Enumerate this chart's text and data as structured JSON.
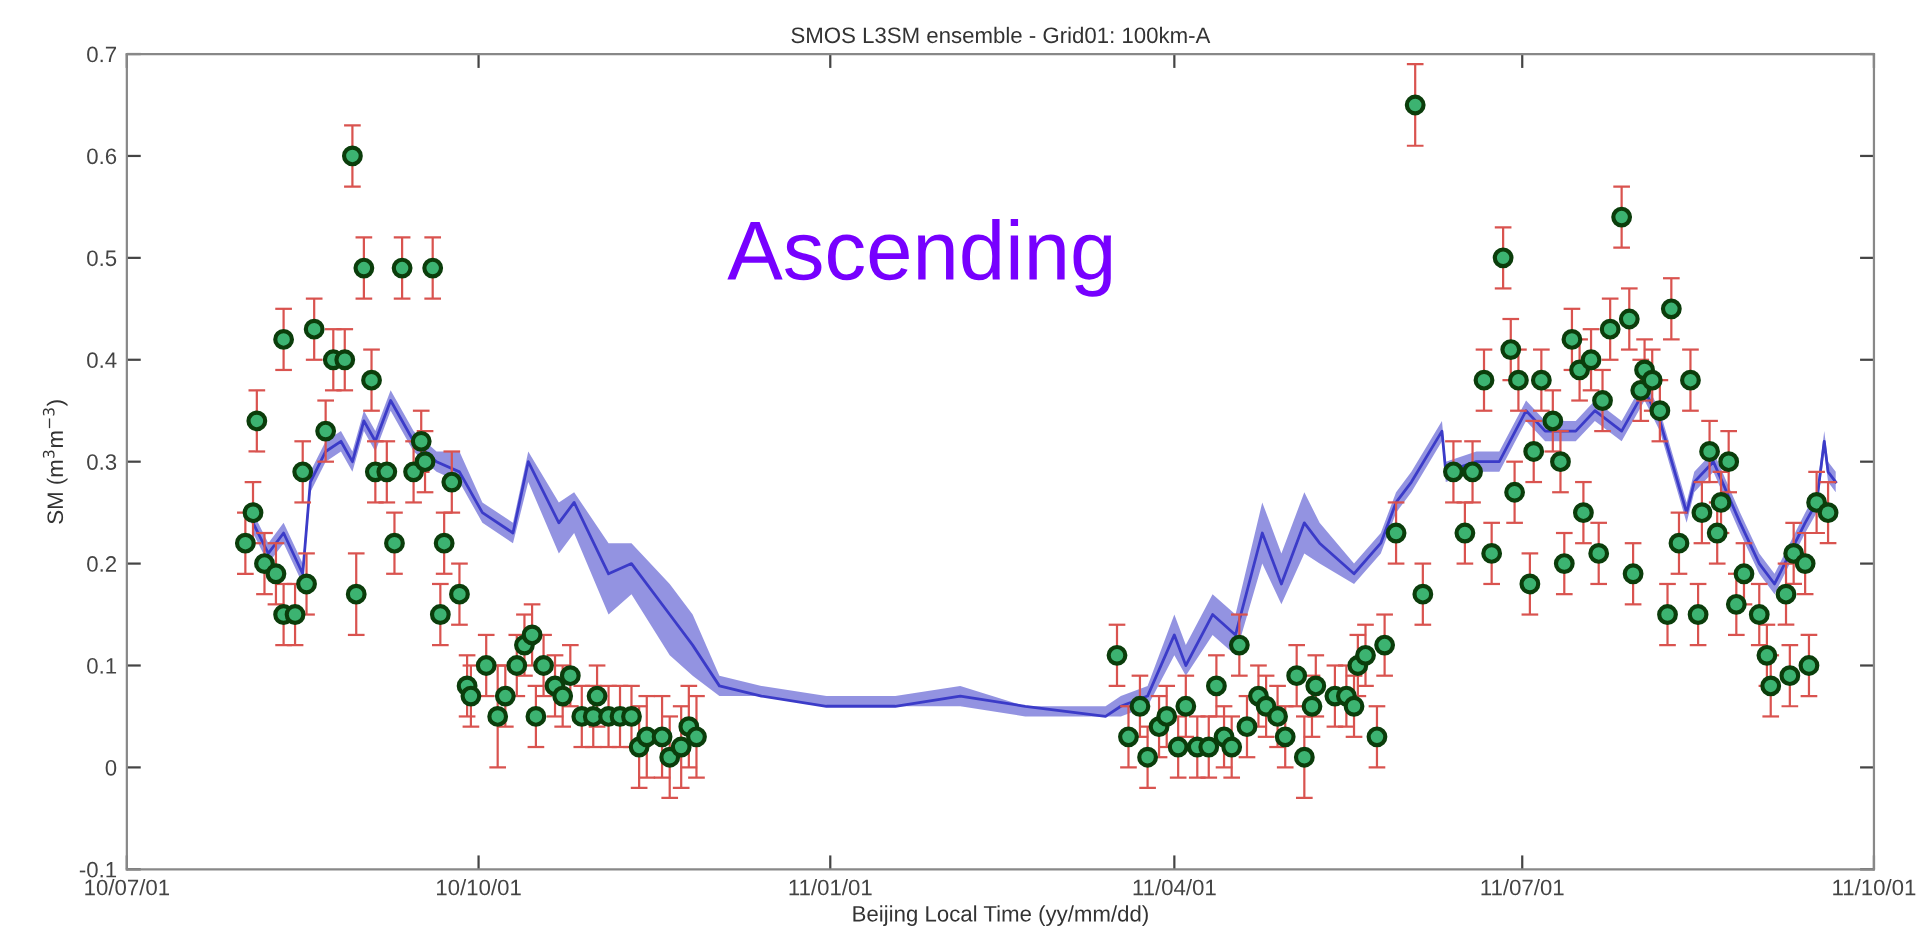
{
  "chart_data": {
    "type": "scatter",
    "title": "SMOS L3SM ensemble - Grid01: 100km-A",
    "xlabel": "Beijing Local Time (yy/mm/dd)",
    "ylabel": "SM (m$^{3}$m$^{−3}$)",
    "annotations": [
      "Ascending"
    ],
    "xlim": [
      "2010-07-01",
      "2011-10-01"
    ],
    "xticks": [
      {
        "value": "2010-07-01",
        "label": "10/07/01"
      },
      {
        "value": "2010-10-01",
        "label": "10/10/01"
      },
      {
        "value": "2011-01-01",
        "label": "11/01/01"
      },
      {
        "value": "2011-04-01",
        "label": "11/04/01"
      },
      {
        "value": "2011-07-01",
        "label": "11/07/01"
      },
      {
        "value": "2011-10-01",
        "label": "11/10/01"
      }
    ],
    "ylim": [
      -0.1,
      0.7
    ],
    "yticks": [
      {
        "value": -0.1,
        "label": "-0.1"
      },
      0,
      0.1,
      0.2,
      0.3,
      0.4,
      0.5,
      0.6,
      0.7
    ],
    "grid": false,
    "series": [
      {
        "type": "line",
        "color": "#3b3bc8",
        "x": [
          "2010-08-03",
          "2010-08-07",
          "2010-08-11",
          "2010-08-16",
          "2010-08-18",
          "2010-08-22",
          "2010-08-26",
          "2010-08-29",
          "2010-09-01",
          "2010-09-04",
          "2010-09-08",
          "2010-09-14",
          "2010-09-20",
          "2010-09-26",
          "2010-10-02",
          "2010-10-10",
          "2010-10-14",
          "2010-10-22",
          "2010-10-26",
          "2010-11-04",
          "2010-11-10",
          "2010-11-20",
          "2010-11-26",
          "2010-12-03",
          "2010-12-14",
          "2010-12-31",
          "2011-01-18",
          "2011-02-04",
          "2011-02-21",
          "2011-03-14",
          "2011-03-18",
          "2011-03-25",
          "2011-04-01",
          "2011-04-04",
          "2011-04-11",
          "2011-04-17",
          "2011-04-24",
          "2011-04-29",
          "2011-05-05",
          "2011-05-09",
          "2011-05-18",
          "2011-05-25",
          "2011-05-29",
          "2011-06-02",
          "2011-06-10",
          "2011-06-11",
          "2011-06-19",
          "2011-06-25",
          "2011-07-02",
          "2011-07-07",
          "2011-07-15",
          "2011-07-20",
          "2011-07-27",
          "2011-08-02",
          "2011-08-06",
          "2011-08-13",
          "2011-08-15",
          "2011-08-20",
          "2011-08-27",
          "2011-09-01",
          "2011-09-05",
          "2011-09-09",
          "2011-09-13",
          "2011-09-16",
          "2011-09-18",
          "2011-09-19",
          "2011-09-21"
        ],
        "values": [
          0.24,
          0.21,
          0.23,
          0.19,
          0.28,
          0.31,
          0.32,
          0.3,
          0.34,
          0.32,
          0.36,
          0.32,
          0.3,
          0.29,
          0.25,
          0.23,
          0.3,
          0.24,
          0.26,
          0.19,
          0.2,
          0.15,
          0.12,
          0.08,
          0.07,
          0.06,
          0.06,
          0.07,
          0.06,
          0.05,
          0.06,
          0.07,
          0.13,
          0.1,
          0.15,
          0.13,
          0.23,
          0.18,
          0.24,
          0.22,
          0.19,
          0.22,
          0.26,
          0.28,
          0.33,
          0.29,
          0.3,
          0.3,
          0.35,
          0.33,
          0.33,
          0.35,
          0.33,
          0.37,
          0.34,
          0.25,
          0.28,
          0.3,
          0.24,
          0.2,
          0.18,
          0.21,
          0.24,
          0.26,
          0.32,
          0.29,
          0.28
        ],
        "lower": [
          0.23,
          0.2,
          0.22,
          0.18,
          0.27,
          0.3,
          0.31,
          0.29,
          0.33,
          0.31,
          0.35,
          0.31,
          0.29,
          0.28,
          0.24,
          0.22,
          0.28,
          0.21,
          0.23,
          0.15,
          0.17,
          0.11,
          0.09,
          0.07,
          0.07,
          0.06,
          0.06,
          0.06,
          0.05,
          0.05,
          0.05,
          0.06,
          0.11,
          0.09,
          0.13,
          0.11,
          0.2,
          0.16,
          0.21,
          0.2,
          0.18,
          0.21,
          0.25,
          0.27,
          0.32,
          0.28,
          0.29,
          0.29,
          0.34,
          0.32,
          0.32,
          0.34,
          0.32,
          0.36,
          0.33,
          0.24,
          0.27,
          0.29,
          0.23,
          0.19,
          0.17,
          0.2,
          0.23,
          0.25,
          0.31,
          0.28,
          0.27
        ],
        "upper": [
          0.25,
          0.22,
          0.24,
          0.2,
          0.29,
          0.32,
          0.33,
          0.31,
          0.35,
          0.33,
          0.37,
          0.33,
          0.31,
          0.31,
          0.26,
          0.24,
          0.31,
          0.26,
          0.27,
          0.22,
          0.22,
          0.18,
          0.15,
          0.09,
          0.08,
          0.07,
          0.07,
          0.08,
          0.06,
          0.06,
          0.07,
          0.08,
          0.15,
          0.12,
          0.17,
          0.15,
          0.26,
          0.21,
          0.27,
          0.24,
          0.2,
          0.23,
          0.27,
          0.29,
          0.34,
          0.3,
          0.31,
          0.31,
          0.36,
          0.34,
          0.34,
          0.36,
          0.34,
          0.38,
          0.35,
          0.26,
          0.29,
          0.31,
          0.25,
          0.21,
          0.19,
          0.22,
          0.25,
          0.27,
          0.33,
          0.3,
          0.29
        ]
      },
      {
        "color": "#3cb371",
        "marker": "circle",
        "x": [
          "2010-08-01",
          "2010-08-03",
          "2010-08-04",
          "2010-08-06",
          "2010-08-09",
          "2010-08-11",
          "2010-08-11",
          "2010-08-14",
          "2010-08-16",
          "2010-08-17",
          "2010-08-19",
          "2010-08-22",
          "2010-08-24",
          "2010-08-27",
          "2010-08-29",
          "2010-08-30",
          "2010-09-01",
          "2010-09-03",
          "2010-09-04",
          "2010-09-07",
          "2010-09-09",
          "2010-09-11",
          "2010-09-14",
          "2010-09-16",
          "2010-09-17",
          "2010-09-19",
          "2010-09-21",
          "2010-09-22",
          "2010-09-24",
          "2010-09-26",
          "2010-09-28",
          "2010-09-29",
          "2010-10-03",
          "2010-10-06",
          "2010-10-08",
          "2010-10-11",
          "2010-10-13",
          "2010-10-15",
          "2010-10-16",
          "2010-10-18",
          "2010-10-21",
          "2010-10-23",
          "2010-10-25",
          "2010-10-28",
          "2010-10-31",
          "2010-11-01",
          "2010-11-04",
          "2010-11-07",
          "2010-11-10",
          "2010-11-12",
          "2010-11-14",
          "2010-11-18",
          "2010-11-20",
          "2010-11-23",
          "2010-11-25",
          "2010-11-27",
          "2011-03-17",
          "2011-03-20",
          "2011-03-23",
          "2011-03-25",
          "2011-03-28",
          "2011-03-30",
          "2011-04-02",
          "2011-04-04",
          "2011-04-07",
          "2011-04-10",
          "2011-04-12",
          "2011-04-14",
          "2011-04-16",
          "2011-04-18",
          "2011-04-20",
          "2011-04-23",
          "2011-04-25",
          "2011-04-28",
          "2011-04-30",
          "2011-05-03",
          "2011-05-05",
          "2011-05-07",
          "2011-05-08",
          "2011-05-13",
          "2011-05-16",
          "2011-05-18",
          "2011-05-19",
          "2011-05-21",
          "2011-05-24",
          "2011-05-26",
          "2011-05-29",
          "2011-06-03",
          "2011-06-05",
          "2011-06-13",
          "2011-06-16",
          "2011-06-18",
          "2011-06-21",
          "2011-06-23",
          "2011-06-26",
          "2011-06-28",
          "2011-06-29",
          "2011-06-30",
          "2011-07-03",
          "2011-07-04",
          "2011-07-06",
          "2011-07-09",
          "2011-07-11",
          "2011-07-12",
          "2011-07-14",
          "2011-07-16",
          "2011-07-17",
          "2011-07-19",
          "2011-07-21",
          "2011-07-22",
          "2011-07-24",
          "2011-07-27",
          "2011-07-29",
          "2011-07-30",
          "2011-08-01",
          "2011-08-02",
          "2011-08-04",
          "2011-08-06",
          "2011-08-08",
          "2011-08-09",
          "2011-08-11",
          "2011-08-14",
          "2011-08-16",
          "2011-08-17",
          "2011-08-19",
          "2011-08-21",
          "2011-08-22",
          "2011-08-24",
          "2011-08-26",
          "2011-08-28",
          "2011-09-01",
          "2011-09-03",
          "2011-09-04",
          "2011-09-08",
          "2011-09-09",
          "2011-09-10",
          "2011-09-13",
          "2011-09-14",
          "2011-09-16",
          "2011-09-19"
        ],
        "values": [
          0.22,
          0.25,
          0.34,
          0.2,
          0.19,
          0.42,
          0.15,
          0.15,
          0.29,
          0.18,
          0.43,
          0.33,
          0.4,
          0.4,
          0.6,
          0.17,
          0.49,
          0.38,
          0.29,
          0.29,
          0.22,
          0.49,
          0.29,
          0.32,
          0.3,
          0.49,
          0.15,
          0.22,
          0.28,
          0.17,
          0.08,
          0.07,
          0.1,
          0.05,
          0.07,
          0.1,
          0.12,
          0.13,
          0.05,
          0.1,
          0.08,
          0.07,
          0.09,
          0.05,
          0.05,
          0.07,
          0.05,
          0.05,
          0.05,
          0.02,
          0.03,
          0.03,
          0.01,
          0.02,
          0.04,
          0.03,
          0.11,
          0.03,
          0.06,
          0.01,
          0.04,
          0.05,
          0.02,
          0.06,
          0.02,
          0.02,
          0.08,
          0.03,
          0.02,
          0.12,
          0.04,
          0.07,
          0.06,
          0.05,
          0.03,
          0.09,
          0.01,
          0.06,
          0.08,
          0.07,
          0.07,
          0.06,
          0.1,
          0.11,
          0.03,
          0.12,
          0.23,
          0.65,
          0.17,
          0.29,
          0.23,
          0.29,
          0.38,
          0.21,
          0.5,
          0.41,
          0.27,
          0.38,
          0.18,
          0.31,
          0.38,
          0.34,
          0.3,
          0.2,
          0.42,
          0.39,
          0.25,
          0.4,
          0.21,
          0.36,
          0.43,
          0.54,
          0.44,
          0.19,
          0.37,
          0.39,
          0.38,
          0.35,
          0.15,
          0.45,
          0.22,
          0.38,
          0.15,
          0.25,
          0.31,
          0.23,
          0.26,
          0.3,
          0.16,
          0.19,
          0.15,
          0.11,
          0.08,
          0.17,
          0.09,
          0.21,
          0.2,
          0.1,
          0.26,
          0.25
        ],
        "errors": [
          0.03,
          0.03,
          0.03,
          0.03,
          0.03,
          0.03,
          0.03,
          0.03,
          0.03,
          0.03,
          0.03,
          0.03,
          0.03,
          0.03,
          0.03,
          0.04,
          0.03,
          0.03,
          0.03,
          0.03,
          0.03,
          0.03,
          0.03,
          0.03,
          0.03,
          0.03,
          0.03,
          0.03,
          0.03,
          0.03,
          0.03,
          0.03,
          0.03,
          0.05,
          0.03,
          0.03,
          0.03,
          0.03,
          0.03,
          0.03,
          0.03,
          0.03,
          0.03,
          0.03,
          0.03,
          0.03,
          0.03,
          0.03,
          0.03,
          0.04,
          0.04,
          0.04,
          0.04,
          0.04,
          0.04,
          0.04,
          0.03,
          0.03,
          0.03,
          0.03,
          0.03,
          0.03,
          0.03,
          0.03,
          0.03,
          0.03,
          0.03,
          0.03,
          0.03,
          0.03,
          0.03,
          0.03,
          0.03,
          0.03,
          0.03,
          0.03,
          0.04,
          0.03,
          0.03,
          0.03,
          0.03,
          0.03,
          0.03,
          0.03,
          0.03,
          0.03,
          0.03,
          0.04,
          0.03,
          0.03,
          0.03,
          0.03,
          0.03,
          0.03,
          0.03,
          0.03,
          0.03,
          0.03,
          0.03,
          0.03,
          0.03,
          0.03,
          0.03,
          0.03,
          0.03,
          0.03,
          0.03,
          0.03,
          0.03,
          0.03,
          0.03,
          0.03,
          0.03,
          0.03,
          0.03,
          0.03,
          0.03,
          0.03,
          0.03,
          0.03,
          0.03,
          0.03,
          0.03,
          0.03,
          0.03,
          0.03,
          0.03,
          0.03,
          0.03,
          0.03,
          0.03,
          0.03,
          0.03,
          0.03,
          0.03,
          0.03,
          0.03,
          0.03,
          0.03,
          0.03
        ]
      }
    ]
  }
}
